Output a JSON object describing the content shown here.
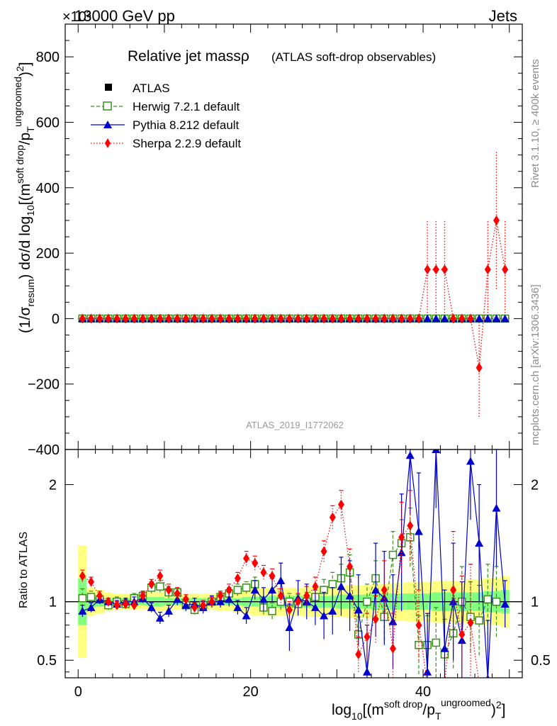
{
  "header": {
    "energy_label": "13000 GeV pp",
    "category_label": "Jets",
    "exponent_label": "×10³"
  },
  "side_notes": {
    "rivet": "Rivet 3.1.10, ≥ 400k events",
    "mcplots": "mcplots.cern.ch [arXiv:1306.3436]"
  },
  "watermark": "ATLAS_2019_I1772062",
  "chart_data": {
    "type": "scatter",
    "title": "Relative jet massρ",
    "subtitle": "(ATLAS soft-drop observables)",
    "ylabel_main": "(1/σ_resum) dσ/d log10[(m^soft drop/p_T^ungroomed)^2]",
    "ylabel_ratio": "Ratio to ATLAS",
    "xlabel": "log10[(m^soft drop/p_T^ungroomed)^2]",
    "xlim": [
      -1.5,
      51.5
    ],
    "ylim_main": [
      -400,
      900
    ],
    "ylim_ratio": [
      0.35,
      2.3
    ],
    "x_ticks": [
      0,
      20,
      40
    ],
    "y_ticks_main": [
      -400,
      -200,
      0,
      200,
      400,
      600,
      800
    ],
    "y_tick_labels_main": [
      "−400",
      "−200",
      "0",
      "200",
      "400",
      "600",
      "800"
    ],
    "y_ticks_ratio": [
      0.5,
      1,
      2
    ],
    "y_tick_labels_ratio": [
      "0.5",
      "1",
      "2"
    ],
    "x": [
      0.5,
      1.5,
      2.5,
      3.5,
      4.5,
      5.5,
      6.5,
      7.5,
      8.5,
      9.5,
      10.5,
      11.5,
      12.5,
      13.5,
      14.5,
      15.5,
      16.5,
      17.5,
      18.5,
      19.5,
      20.5,
      21.5,
      22.5,
      23.5,
      24.5,
      25.5,
      26.5,
      27.5,
      28.5,
      29.5,
      30.5,
      31.5,
      32.5,
      33.5,
      34.5,
      35.5,
      36.5,
      37.5,
      38.5,
      39.5,
      40.5,
      41.5,
      42.5,
      43.5,
      44.5,
      45.5,
      46.5,
      47.5,
      48.5,
      49.5
    ],
    "main_panel": {
      "atlas": [
        0,
        0,
        0,
        0,
        0,
        0,
        0,
        0,
        0,
        0,
        0,
        0,
        0,
        0,
        0,
        0,
        0,
        0,
        0,
        0,
        0,
        0,
        0,
        0,
        0,
        0,
        0,
        0,
        0,
        0,
        0,
        0,
        0,
        0,
        0,
        0,
        0,
        0,
        0,
        0,
        0,
        0,
        0,
        0,
        0,
        0,
        0,
        0,
        0,
        0
      ],
      "sherpa": [
        0,
        0,
        0,
        0,
        0,
        0,
        0,
        0,
        0,
        0,
        0,
        0,
        0,
        0,
        0,
        0,
        0,
        0,
        0,
        0,
        0,
        0,
        0,
        0,
        0,
        0,
        0,
        0,
        0,
        0,
        0,
        0,
        0,
        0,
        0,
        0,
        0,
        0,
        0,
        0,
        150,
        150,
        150,
        0,
        0,
        0,
        -150,
        150,
        300,
        150
      ],
      "sherpa_err": [
        0,
        0,
        0,
        0,
        0,
        0,
        0,
        0,
        0,
        0,
        0,
        0,
        0,
        0,
        0,
        0,
        0,
        0,
        0,
        0,
        0,
        0,
        0,
        0,
        0,
        0,
        0,
        0,
        0,
        0,
        0,
        0,
        0,
        0,
        0,
        0,
        0,
        0,
        0,
        0,
        150,
        150,
        150,
        0,
        0,
        0,
        150,
        150,
        210,
        150
      ]
    },
    "series": [
      {
        "name": "ATLAS",
        "color": "#000000",
        "marker": "filled-square",
        "line": "none",
        "band_inner_color": "#80ff80",
        "band_outer_color": "#ffff80",
        "band_inner": [
          0.2,
          0.05,
          0.04,
          0.03,
          0.03,
          0.03,
          0.03,
          0.03,
          0.04,
          0.04,
          0.03,
          0.03,
          0.03,
          0.03,
          0.03,
          0.03,
          0.03,
          0.03,
          0.03,
          0.04,
          0.04,
          0.05,
          0.05,
          0.05,
          0.05,
          0.05,
          0.05,
          0.05,
          0.05,
          0.05,
          0.06,
          0.06,
          0.06,
          0.06,
          0.07,
          0.07,
          0.07,
          0.07,
          0.07,
          0.07,
          0.07,
          0.08,
          0.08,
          0.08,
          0.08,
          0.08,
          0.08,
          0.09,
          0.09,
          0.1
        ],
        "band_outer": [
          0.48,
          0.12,
          0.1,
          0.08,
          0.07,
          0.07,
          0.07,
          0.07,
          0.08,
          0.08,
          0.08,
          0.07,
          0.07,
          0.07,
          0.07,
          0.07,
          0.08,
          0.08,
          0.09,
          0.1,
          0.12,
          0.12,
          0.12,
          0.12,
          0.12,
          0.12,
          0.13,
          0.13,
          0.13,
          0.13,
          0.13,
          0.14,
          0.14,
          0.14,
          0.15,
          0.15,
          0.16,
          0.16,
          0.17,
          0.17,
          0.17,
          0.18,
          0.18,
          0.18,
          0.18,
          0.19,
          0.19,
          0.2,
          0.2,
          0.22
        ]
      },
      {
        "name": "Herwig 7.2.1 default",
        "color": "#3a8f1a",
        "marker": "open-square",
        "line": "dashed",
        "ratio": [
          1.03,
          1.04,
          1.02,
          0.97,
          1.0,
          0.98,
          1.03,
          1.05,
          1.12,
          1.13,
          1.08,
          1.08,
          0.97,
          0.93,
          0.97,
          1.0,
          1.04,
          1.07,
          1.1,
          1.12,
          1.15,
          0.95,
          0.92,
          1.0,
          1.0,
          0.98,
          1.0,
          1.04,
          1.1,
          1.15,
          1.2,
          1.25,
          0.72,
          1.0,
          1.2,
          0.87,
          1.4,
          1.5,
          1.55,
          0.63,
          0.63,
          0.65,
          0.55,
          0.73,
          1.0,
          0.87,
          0.84,
          1.02,
          1.0,
          0.0
        ],
        "ratio_err": [
          0.08,
          0.05,
          0.04,
          0.04,
          0.04,
          0.04,
          0.04,
          0.04,
          0.05,
          0.05,
          0.05,
          0.04,
          0.04,
          0.04,
          0.04,
          0.04,
          0.04,
          0.05,
          0.05,
          0.05,
          0.06,
          0.06,
          0.07,
          0.07,
          0.07,
          0.08,
          0.08,
          0.08,
          0.09,
          0.1,
          0.12,
          0.15,
          0.15,
          0.15,
          0.15,
          0.2,
          0.2,
          0.2,
          0.25,
          0.25,
          0.25,
          0.3,
          0.3,
          0.3,
          0.3,
          0.3,
          0.3,
          0.3,
          0.3,
          0.0
        ]
      },
      {
        "name": "Pythia 8.212 default",
        "color": "#0000cc",
        "marker": "filled-triangle",
        "line": "solid",
        "ratio": [
          0.92,
          0.95,
          1.02,
          1.0,
          0.98,
          1.0,
          1.0,
          1.03,
          0.95,
          0.86,
          0.92,
          1.02,
          0.97,
          0.98,
          0.95,
          1.0,
          1.0,
          1.02,
          0.95,
          0.88,
          1.1,
          1.02,
          1.1,
          1.18,
          0.78,
          1.03,
          1.0,
          0.95,
          0.88,
          0.92,
          1.13,
          1.05,
          0.93,
          0.4,
          1.1,
          1.03,
          0.83,
          1.42,
          2.25,
          1.6,
          0.4,
          2.3,
          0.6,
          1.0,
          0.67,
          2.2,
          1.5,
          0.34,
          1.8,
          0.98
        ],
        "ratio_err": [
          0.05,
          0.04,
          0.04,
          0.03,
          0.03,
          0.03,
          0.04,
          0.04,
          0.04,
          0.05,
          0.05,
          0.05,
          0.05,
          0.05,
          0.05,
          0.05,
          0.05,
          0.06,
          0.06,
          0.07,
          0.08,
          0.1,
          0.1,
          0.15,
          0.2,
          0.15,
          0.15,
          0.15,
          0.2,
          0.2,
          0.25,
          0.3,
          0.3,
          0.4,
          0.4,
          0.4,
          0.4,
          0.5,
          0.5,
          0.5,
          0.5,
          0.5,
          0.5,
          0.5,
          0.5,
          0.5,
          0.5,
          0.5,
          0.5,
          0.2
        ]
      },
      {
        "name": "Sherpa 2.2.9 default",
        "color": "#ff0000",
        "marker": "filled-diamond",
        "line": "dotted",
        "ratio": [
          1.22,
          1.17,
          1.05,
          1.0,
          0.97,
          0.98,
          0.97,
          1.05,
          1.15,
          1.22,
          1.1,
          1.07,
          1.02,
          0.95,
          0.97,
          1.0,
          1.05,
          1.1,
          1.2,
          1.37,
          1.33,
          1.25,
          1.22,
          1.05,
          0.93,
          1.0,
          1.05,
          1.13,
          1.43,
          1.72,
          1.83,
          1.3,
          0.55,
          0.7,
          0.85,
          1.1,
          0.6,
          1.55,
          1.65,
          0.8,
          0.3,
          0.3,
          0.3,
          1.1,
          0.72,
          0.82,
          0.3,
          0.3,
          0.3,
          0.3
        ],
        "ratio_err": [
          0.05,
          0.04,
          0.04,
          0.03,
          0.03,
          0.03,
          0.04,
          0.04,
          0.04,
          0.05,
          0.05,
          0.05,
          0.04,
          0.04,
          0.04,
          0.04,
          0.04,
          0.05,
          0.05,
          0.06,
          0.06,
          0.06,
          0.06,
          0.06,
          0.07,
          0.07,
          0.08,
          0.08,
          0.09,
          0.1,
          0.12,
          0.15,
          0.15,
          0.2,
          0.2,
          0.25,
          0.3,
          0.3,
          0.3,
          0.3,
          0.0,
          0.0,
          0.0,
          0.5,
          0.5,
          0.5,
          0.0,
          0.0,
          0.0,
          0.0
        ]
      }
    ]
  }
}
